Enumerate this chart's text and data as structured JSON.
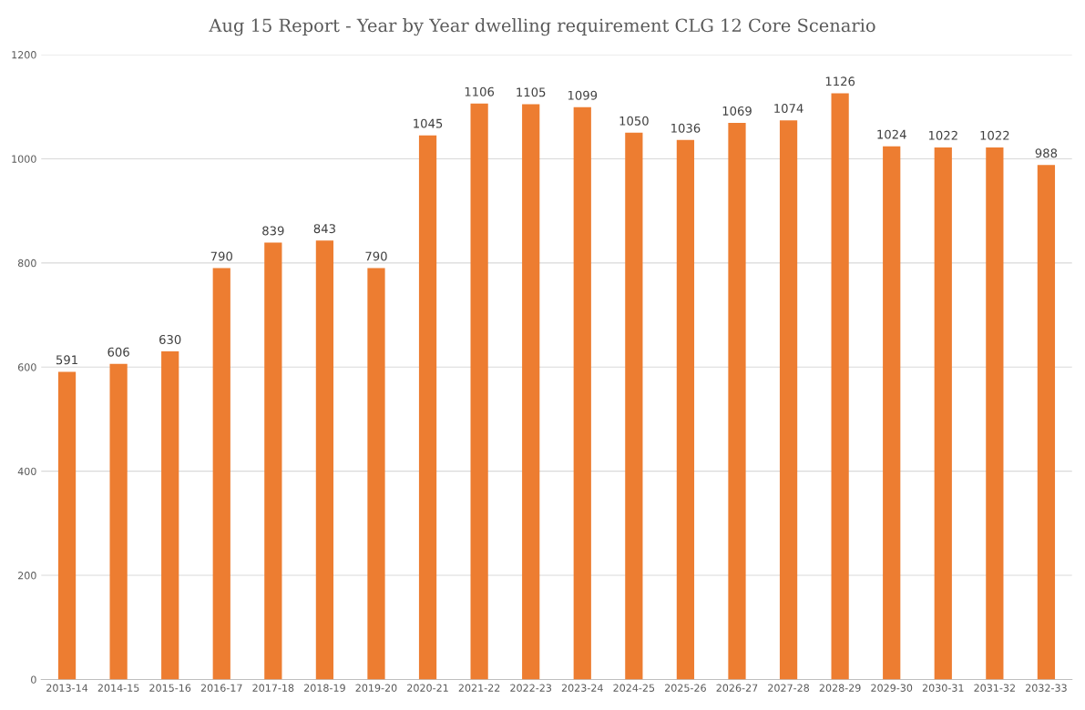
{
  "chart_data": {
    "type": "bar",
    "title": "Aug 15 Report - Year by Year dwelling requirement CLG 12 Core Scenario",
    "categories": [
      "2013-14",
      "2014-15",
      "2015-16",
      "2016-17",
      "2017-18",
      "2018-19",
      "2019-20",
      "2020-21",
      "2021-22",
      "2022-23",
      "2023-24",
      "2024-25",
      "2025-26",
      "2026-27",
      "2027-28",
      "2028-29",
      "2029-30",
      "2030-31",
      "2031-32",
      "2032-33"
    ],
    "values": [
      591,
      606,
      630,
      790,
      839,
      843,
      790,
      1045,
      1106,
      1105,
      1099,
      1050,
      1036,
      1069,
      1074,
      1126,
      1024,
      1022,
      1022,
      988
    ],
    "color": "#ed7d31",
    "ylim": [
      0,
      1200
    ],
    "yticks": [
      0,
      200,
      400,
      600,
      800,
      1000,
      1200
    ],
    "grid": "y",
    "data_labels": true
  }
}
